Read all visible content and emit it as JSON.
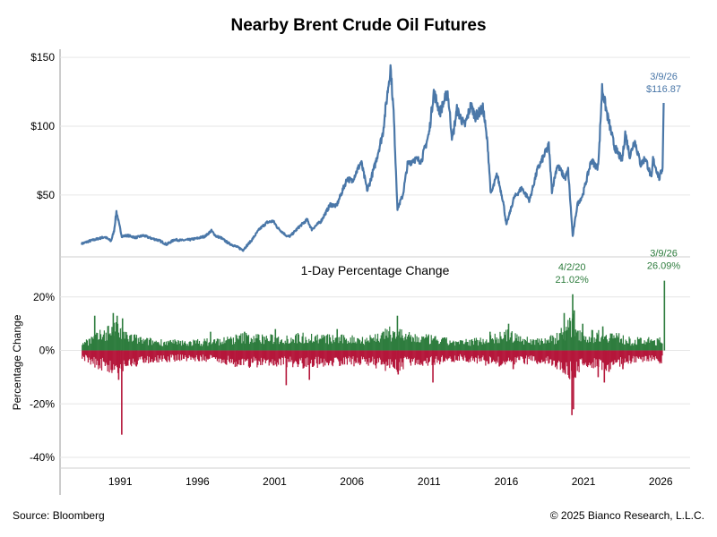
{
  "title": "Nearby Brent Crude Oil Futures",
  "source": "Source: Bloomberg",
  "copyright": "© 2025 Bianco Research, L.L.C.",
  "colors": {
    "price_line": "#4a77a8",
    "positive": "#2e7d3e",
    "negative": "#b5173b",
    "grid": "#e6e6e6",
    "axis": "#999999"
  },
  "chart_data": [
    {
      "type": "line",
      "series": [
        {
          "values": [
            [
              1988.5,
              14.5
            ],
            [
              1989.0,
              16.5
            ],
            [
              1989.5,
              18.0
            ],
            [
              1990.0,
              19.5
            ],
            [
              1990.4,
              16.5
            ],
            [
              1990.6,
              24.0
            ],
            [
              1990.75,
              38.0
            ],
            [
              1990.9,
              30.0
            ],
            [
              1991.1,
              20.0
            ],
            [
              1991.5,
              20.5
            ],
            [
              1992.0,
              19.0
            ],
            [
              1992.5,
              20.5
            ],
            [
              1993.0,
              18.5
            ],
            [
              1993.5,
              17.0
            ],
            [
              1994.0,
              14.0
            ],
            [
              1994.5,
              17.5
            ],
            [
              1995.0,
              17.0
            ],
            [
              1995.5,
              17.5
            ],
            [
              1996.0,
              18.5
            ],
            [
              1996.5,
              20.0
            ],
            [
              1996.9,
              24.0
            ],
            [
              1997.2,
              20.0
            ],
            [
              1997.5,
              19.0
            ],
            [
              1998.0,
              15.0
            ],
            [
              1998.5,
              12.5
            ],
            [
              1998.95,
              10.0
            ],
            [
              1999.5,
              17.0
            ],
            [
              2000.0,
              25.0
            ],
            [
              2000.5,
              30.0
            ],
            [
              2000.9,
              31.0
            ],
            [
              2001.2,
              26.0
            ],
            [
              2001.8,
              20.0
            ],
            [
              2002.0,
              20.0
            ],
            [
              2002.6,
              27.0
            ],
            [
              2003.1,
              32.0
            ],
            [
              2003.4,
              25.0
            ],
            [
              2004.0,
              31.0
            ],
            [
              2004.6,
              43.0
            ],
            [
              2005.0,
              42.0
            ],
            [
              2005.7,
              62.0
            ],
            [
              2006.0,
              60.0
            ],
            [
              2006.6,
              74.0
            ],
            [
              2007.0,
              53.0
            ],
            [
              2007.5,
              72.0
            ],
            [
              2008.0,
              95.0
            ],
            [
              2008.5,
              143.0
            ],
            [
              2008.7,
              110.0
            ],
            [
              2008.95,
              40.0
            ],
            [
              2009.3,
              50.0
            ],
            [
              2009.6,
              72.0
            ],
            [
              2010.0,
              76.0
            ],
            [
              2010.5,
              75.0
            ],
            [
              2011.0,
              95.0
            ],
            [
              2011.3,
              125.0
            ],
            [
              2011.7,
              110.0
            ],
            [
              2012.2,
              125.0
            ],
            [
              2012.5,
              90.0
            ],
            [
              2012.8,
              112.0
            ],
            [
              2013.3,
              100.0
            ],
            [
              2013.7,
              115.0
            ],
            [
              2014.0,
              107.0
            ],
            [
              2014.5,
              113.0
            ],
            [
              2014.8,
              85.0
            ],
            [
              2015.0,
              50.0
            ],
            [
              2015.4,
              65.0
            ],
            [
              2015.8,
              45.0
            ],
            [
              2016.0,
              28.0
            ],
            [
              2016.5,
              48.0
            ],
            [
              2017.0,
              55.0
            ],
            [
              2017.5,
              46.0
            ],
            [
              2018.0,
              68.0
            ],
            [
              2018.75,
              86.0
            ],
            [
              2018.95,
              53.0
            ],
            [
              2019.3,
              72.0
            ],
            [
              2019.8,
              62.0
            ],
            [
              2020.0,
              68.0
            ],
            [
              2020.3,
              20.0
            ],
            [
              2020.6,
              43.0
            ],
            [
              2020.95,
              50.0
            ],
            [
              2021.5,
              75.0
            ],
            [
              2021.9,
              70.0
            ],
            [
              2022.0,
              80.0
            ],
            [
              2022.2,
              128.0
            ],
            [
              2022.5,
              110.0
            ],
            [
              2022.8,
              95.0
            ],
            [
              2023.0,
              85.0
            ],
            [
              2023.5,
              75.0
            ],
            [
              2023.7,
              95.0
            ],
            [
              2024.0,
              78.0
            ],
            [
              2024.3,
              90.0
            ],
            [
              2024.7,
              72.0
            ],
            [
              2025.0,
              77.0
            ],
            [
              2025.4,
              62.0
            ],
            [
              2025.5,
              76.0
            ],
            [
              2025.9,
              62.0
            ],
            [
              2026.12,
              70.0
            ],
            [
              2026.19,
              116.87
            ]
          ]
        }
      ],
      "yticks": [
        "$50",
        "$100",
        "$150"
      ],
      "ytick_values": [
        50,
        100,
        150
      ],
      "ylim": [
        5,
        152
      ],
      "annotation": {
        "date": "3/9/26",
        "value": "$116.87",
        "x": 2026.19,
        "y": 116.87
      }
    },
    {
      "type": "bar",
      "title": "1-Day Percentage Change",
      "ylabel": "Percentage Change",
      "yticks": [
        "20%",
        "0%",
        "-20%",
        "-40%"
      ],
      "ytick_values": [
        20,
        0,
        -20,
        -40
      ],
      "ylim": [
        -44,
        35
      ],
      "xlim": [
        1987.1,
        2027.9
      ],
      "xticks": [
        "1991",
        "1996",
        "2001",
        "2006",
        "2011",
        "2016",
        "2021",
        "2026"
      ],
      "xtick_values": [
        1991,
        1996,
        2001,
        2006,
        2011,
        2016,
        2021,
        2026
      ],
      "up_envelope": [
        [
          1988.5,
          4
        ],
        [
          1989.5,
          7
        ],
        [
          1990.5,
          12
        ],
        [
          1991.2,
          8
        ],
        [
          1992.5,
          5
        ],
        [
          1995,
          4
        ],
        [
          1997.5,
          5
        ],
        [
          1999,
          7
        ],
        [
          2001,
          6
        ],
        [
          2003,
          7
        ],
        [
          2005,
          6
        ],
        [
          2007,
          6
        ],
        [
          2008.9,
          10
        ],
        [
          2009.5,
          7
        ],
        [
          2011,
          6
        ],
        [
          2013,
          4
        ],
        [
          2014.9,
          6
        ],
        [
          2016,
          8
        ],
        [
          2017.5,
          5
        ],
        [
          2019,
          6
        ],
        [
          2020.3,
          14
        ],
        [
          2021,
          7
        ],
        [
          2022.3,
          9
        ],
        [
          2024,
          5
        ],
        [
          2026,
          5
        ]
      ],
      "down_envelope": [
        [
          1988.5,
          -4
        ],
        [
          1989.5,
          -7
        ],
        [
          1990.5,
          -10
        ],
        [
          1991.2,
          -8
        ],
        [
          1992.5,
          -5
        ],
        [
          1995,
          -4
        ],
        [
          1997.5,
          -5
        ],
        [
          1999,
          -7
        ],
        [
          2001,
          -6
        ],
        [
          2003,
          -7
        ],
        [
          2005,
          -6
        ],
        [
          2007,
          -6
        ],
        [
          2008.9,
          -9
        ],
        [
          2009.5,
          -6
        ],
        [
          2011,
          -6
        ],
        [
          2013,
          -4
        ],
        [
          2014.9,
          -6
        ],
        [
          2016,
          -7
        ],
        [
          2017.5,
          -5
        ],
        [
          2019,
          -6
        ],
        [
          2020.3,
          -12
        ],
        [
          2021,
          -6
        ],
        [
          2022.3,
          -8
        ],
        [
          2024,
          -5
        ],
        [
          2026,
          -5
        ]
      ],
      "spikes": [
        [
          1989.3,
          13
        ],
        [
          1990.5,
          14
        ],
        [
          1990.75,
          13
        ],
        [
          1990.85,
          -11
        ],
        [
          1991.05,
          -31.5
        ],
        [
          1991.1,
          12
        ],
        [
          1992.0,
          -6
        ],
        [
          1996.8,
          7
        ],
        [
          1998.5,
          -6
        ],
        [
          1999.0,
          7
        ],
        [
          2001.0,
          8
        ],
        [
          2001.7,
          -13
        ],
        [
          2003.2,
          -11
        ],
        [
          2005.0,
          8
        ],
        [
          2008.0,
          7
        ],
        [
          2008.9,
          13
        ],
        [
          2008.95,
          -9
        ],
        [
          2011.2,
          -12
        ],
        [
          2014.9,
          7
        ],
        [
          2015.5,
          -6
        ],
        [
          2016.1,
          10
        ],
        [
          2016.4,
          -7
        ],
        [
          2019.7,
          14
        ],
        [
          2020.2,
          -24.2
        ],
        [
          2020.25,
          21.02
        ],
        [
          2020.3,
          -22
        ],
        [
          2020.35,
          15
        ],
        [
          2020.9,
          10
        ],
        [
          2021.9,
          -10
        ],
        [
          2022.2,
          9
        ],
        [
          2022.3,
          -12
        ],
        [
          2022.6,
          -8
        ],
        [
          2023.5,
          -7
        ],
        [
          2026.19,
          26.09
        ]
      ],
      "annotations": [
        {
          "date": "4/2/20",
          "value": "21.02%",
          "x": 2020.25,
          "y": 21.02
        },
        {
          "date": "3/9/26",
          "value": "26.09%",
          "x": 2026.19,
          "y": 26.09
        }
      ]
    }
  ]
}
